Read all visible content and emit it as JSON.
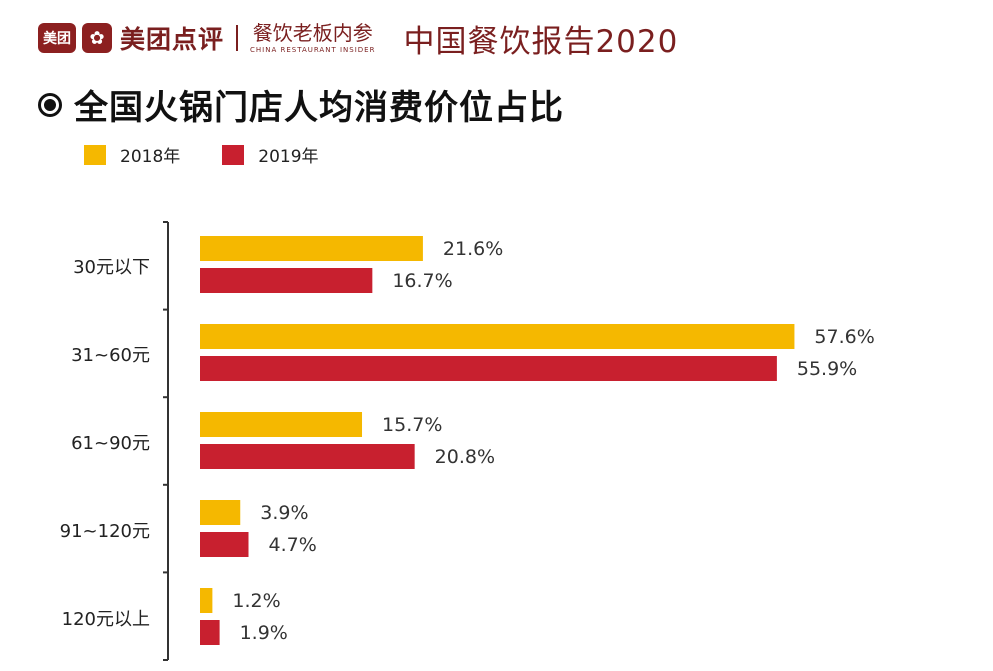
{
  "header": {
    "logo_text": "美团",
    "brand": "美团点评",
    "partner_cn": "餐饮老板内参",
    "report_title": "中国餐饮报告2020"
  },
  "colors": {
    "series_2018": "#f5b800",
    "series_2019": "#c8202f",
    "brand": "#7a1f1f"
  },
  "chart_data": {
    "type": "bar",
    "orientation": "horizontal",
    "title": "全国火锅门店人均消费价位占比",
    "categories": [
      "30元以下",
      "31~60元",
      "61~90元",
      "91~120元",
      "120元以上"
    ],
    "series": [
      {
        "name": "2018年",
        "values": [
          21.6,
          57.6,
          15.7,
          3.9,
          1.2
        ]
      },
      {
        "name": "2019年",
        "values": [
          16.7,
          55.9,
          20.8,
          4.7,
          1.9
        ]
      }
    ],
    "value_labels": [
      [
        "21.6%",
        "57.6%",
        "15.7%",
        "3.9%",
        "1.2%"
      ],
      [
        "16.7%",
        "55.9%",
        "20.8%",
        "4.7%",
        "1.9%"
      ]
    ],
    "unit": "%",
    "legend_position": "top-left",
    "grid": false
  }
}
